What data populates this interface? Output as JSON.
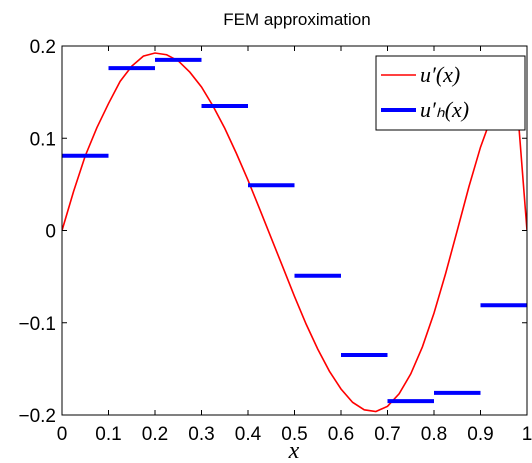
{
  "chart_data": {
    "type": "line",
    "title": "FEM approximation",
    "xlabel": "x",
    "ylabel": "",
    "xlim": [
      0,
      1
    ],
    "ylim": [
      -0.2,
      0.2
    ],
    "xticks": [
      0,
      0.1,
      0.2,
      0.3,
      0.4,
      0.5,
      0.6,
      0.7,
      0.8,
      0.9,
      1
    ],
    "xtick_labels": [
      "0",
      "0.1",
      "0.2",
      "0.3",
      "0.4",
      "0.5",
      "0.6",
      "0.7",
      "0.8",
      "0.9",
      "1"
    ],
    "yticks": [
      -0.2,
      -0.1,
      0,
      0.1,
      0.2
    ],
    "ytick_labels": [
      "−0.2",
      "−0.1",
      "0",
      "0.1",
      "0.2"
    ],
    "grid": false,
    "legend_position": "top-right",
    "series": [
      {
        "name": "u′(x)",
        "kind": "curve",
        "color": "#ff0000",
        "x": [
          0,
          0.025,
          0.05,
          0.075,
          0.1,
          0.125,
          0.15,
          0.175,
          0.2,
          0.225,
          0.25,
          0.275,
          0.3,
          0.325,
          0.35,
          0.375,
          0.4,
          0.425,
          0.45,
          0.475,
          0.5,
          0.525,
          0.55,
          0.575,
          0.6,
          0.625,
          0.65,
          0.675,
          0.7,
          0.725,
          0.75,
          0.775,
          0.8,
          0.825,
          0.85,
          0.875,
          0.9,
          0.925,
          0.95,
          0.975,
          1
        ],
        "y": [
          0,
          0.0425,
          0.0809,
          0.1115,
          0.1376,
          0.1617,
          0.1781,
          0.189,
          0.1924,
          0.1905,
          0.1839,
          0.1716,
          0.1556,
          0.1347,
          0.1108,
          0.0836,
          0.0545,
          0.0234,
          -0.0082,
          -0.0398,
          -0.0715,
          -0.1015,
          -0.1286,
          -0.1525,
          -0.1718,
          -0.1863,
          -0.1944,
          -0.1962,
          -0.1906,
          -0.177,
          -0.1555,
          -0.1262,
          -0.0896,
          -0.0466,
          0,
          0.0473,
          0.0903,
          0.125,
          0.149,
          0.1616,
          0
        ]
      },
      {
        "name": "u′ₕ(x)",
        "kind": "piecewise-constant",
        "color": "#0000ff",
        "segments": [
          {
            "x0": 0,
            "x1": 0.1,
            "y": 0.081
          },
          {
            "x0": 0.1,
            "x1": 0.2,
            "y": 0.176
          },
          {
            "x0": 0.2,
            "x1": 0.3,
            "y": 0.185
          },
          {
            "x0": 0.3,
            "x1": 0.4,
            "y": 0.135
          },
          {
            "x0": 0.4,
            "x1": 0.5,
            "y": 0.049
          },
          {
            "x0": 0.5,
            "x1": 0.6,
            "y": -0.049
          },
          {
            "x0": 0.6,
            "x1": 0.7,
            "y": -0.135
          },
          {
            "x0": 0.7,
            "x1": 0.8,
            "y": -0.185
          },
          {
            "x0": 0.8,
            "x1": 0.9,
            "y": -0.176
          },
          {
            "x0": 0.9,
            "x1": 1,
            "y": -0.081
          }
        ]
      }
    ]
  }
}
